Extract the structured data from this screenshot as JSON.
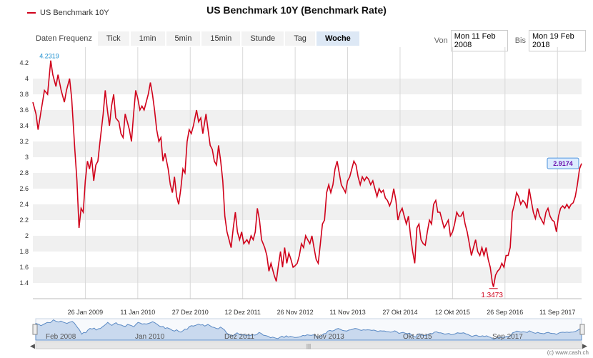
{
  "title": "US Benchmark 10Y (Benchmark Rate)",
  "legend_label": "US Benchmark 10Y",
  "range_selector": {
    "label": "Daten Frequenz",
    "buttons": [
      "Tick",
      "1min",
      "5min",
      "15min",
      "Stunde",
      "Tag",
      "Woche"
    ],
    "active": "Woche"
  },
  "date_range": {
    "from_label": "Von",
    "from_value": "Mon 11 Feb 2008",
    "to_label": "Bis",
    "to_value": "Mon 19 Feb 2018"
  },
  "navigator_labels": [
    "Feb 2008",
    "Jan 2010",
    "Dez 2011",
    "Nov 2013",
    "Okt 2015",
    "Sep 2017"
  ],
  "credit": "(c) www.cash.ch",
  "colors": {
    "line": "#d0021b",
    "band": "#f0f0f0",
    "navigator_fill": "#c9d9ee",
    "navigator_line": "#5b8ac4",
    "last_label": "#6a0dad"
  },
  "chart_data": {
    "type": "line",
    "title": "US Benchmark 10Y (Benchmark Rate)",
    "ylim": [
      1.2,
      4.4
    ],
    "yticks": [
      1.4,
      1.6,
      1.8,
      2,
      2.2,
      2.4,
      2.6,
      2.8,
      3,
      3.2,
      3.4,
      3.6,
      3.8,
      4,
      4.2
    ],
    "xticks": [
      {
        "date": "2009-01-26",
        "label": "26 Jan 2009"
      },
      {
        "date": "2010-01-11",
        "label": "11 Jan 2010"
      },
      {
        "date": "2010-12-27",
        "label": "27 Dez 2010"
      },
      {
        "date": "2011-12-12",
        "label": "12 Dez 2011"
      },
      {
        "date": "2012-11-26",
        "label": "26 Nov 2012"
      },
      {
        "date": "2013-11-11",
        "label": "11 Nov 2013"
      },
      {
        "date": "2014-10-27",
        "label": "27 Okt 2014"
      },
      {
        "date": "2015-10-12",
        "label": "12 Okt 2015"
      },
      {
        "date": "2016-09-26",
        "label": "26 Sep 2016"
      },
      {
        "date": "2017-09-11",
        "label": "11 Sep 2017"
      }
    ],
    "x_range": [
      "2008-02-11",
      "2018-02-19"
    ],
    "annotations": {
      "max": {
        "date": "2008-06-09",
        "value": 4.2319,
        "label": "4.2319"
      },
      "min": {
        "date": "2016-07-11",
        "value": 1.3473,
        "label": "1.3473"
      },
      "last": {
        "date": "2018-02-19",
        "value": 2.9174,
        "label": "2.9174"
      }
    },
    "series": [
      {
        "name": "US Benchmark 10Y",
        "points": [
          [
            "2008-02-11",
            3.7
          ],
          [
            "2008-03-03",
            3.55
          ],
          [
            "2008-03-17",
            3.35
          ],
          [
            "2008-04-07",
            3.6
          ],
          [
            "2008-04-28",
            3.85
          ],
          [
            "2008-05-19",
            3.8
          ],
          [
            "2008-06-09",
            4.23
          ],
          [
            "2008-06-23",
            4.05
          ],
          [
            "2008-07-14",
            3.9
          ],
          [
            "2008-07-28",
            4.05
          ],
          [
            "2008-08-18",
            3.85
          ],
          [
            "2008-09-08",
            3.7
          ],
          [
            "2008-09-22",
            3.85
          ],
          [
            "2008-10-13",
            4.0
          ],
          [
            "2008-10-27",
            3.75
          ],
          [
            "2008-11-17",
            3.1
          ],
          [
            "2008-12-01",
            2.7
          ],
          [
            "2008-12-15",
            2.1
          ],
          [
            "2008-12-29",
            2.35
          ],
          [
            "2009-01-12",
            2.3
          ],
          [
            "2009-01-26",
            2.7
          ],
          [
            "2009-02-09",
            2.95
          ],
          [
            "2009-02-23",
            2.85
          ],
          [
            "2009-03-09",
            3.0
          ],
          [
            "2009-03-23",
            2.7
          ],
          [
            "2009-04-06",
            2.9
          ],
          [
            "2009-04-20",
            2.95
          ],
          [
            "2009-05-04",
            3.2
          ],
          [
            "2009-05-25",
            3.55
          ],
          [
            "2009-06-08",
            3.85
          ],
          [
            "2009-06-22",
            3.6
          ],
          [
            "2009-07-06",
            3.4
          ],
          [
            "2009-07-20",
            3.65
          ],
          [
            "2009-08-03",
            3.8
          ],
          [
            "2009-08-17",
            3.5
          ],
          [
            "2009-09-07",
            3.45
          ],
          [
            "2009-09-21",
            3.3
          ],
          [
            "2009-10-05",
            3.25
          ],
          [
            "2009-10-19",
            3.55
          ],
          [
            "2009-11-02",
            3.45
          ],
          [
            "2009-11-16",
            3.35
          ],
          [
            "2009-11-30",
            3.2
          ],
          [
            "2009-12-14",
            3.55
          ],
          [
            "2009-12-28",
            3.85
          ],
          [
            "2010-01-11",
            3.75
          ],
          [
            "2010-01-25",
            3.6
          ],
          [
            "2010-02-08",
            3.65
          ],
          [
            "2010-02-22",
            3.6
          ],
          [
            "2010-03-08",
            3.7
          ],
          [
            "2010-03-22",
            3.8
          ],
          [
            "2010-04-05",
            3.95
          ],
          [
            "2010-04-19",
            3.8
          ],
          [
            "2010-05-03",
            3.6
          ],
          [
            "2010-05-17",
            3.35
          ],
          [
            "2010-06-01",
            3.2
          ],
          [
            "2010-06-14",
            3.25
          ],
          [
            "2010-06-28",
            2.95
          ],
          [
            "2010-07-12",
            3.05
          ],
          [
            "2010-08-02",
            2.85
          ],
          [
            "2010-08-16",
            2.65
          ],
          [
            "2010-08-30",
            2.55
          ],
          [
            "2010-09-13",
            2.75
          ],
          [
            "2010-09-27",
            2.5
          ],
          [
            "2010-10-11",
            2.4
          ],
          [
            "2010-10-25",
            2.6
          ],
          [
            "2010-11-08",
            2.85
          ],
          [
            "2010-11-22",
            2.8
          ],
          [
            "2010-12-06",
            3.2
          ],
          [
            "2010-12-20",
            3.35
          ],
          [
            "2011-01-03",
            3.3
          ],
          [
            "2011-01-17",
            3.4
          ],
          [
            "2011-02-07",
            3.6
          ],
          [
            "2011-02-21",
            3.45
          ],
          [
            "2011-03-07",
            3.5
          ],
          [
            "2011-03-21",
            3.3
          ],
          [
            "2011-04-11",
            3.55
          ],
          [
            "2011-04-25",
            3.35
          ],
          [
            "2011-05-09",
            3.15
          ],
          [
            "2011-05-23",
            3.1
          ],
          [
            "2011-06-06",
            2.95
          ],
          [
            "2011-06-20",
            2.9
          ],
          [
            "2011-07-04",
            3.15
          ],
          [
            "2011-07-18",
            2.95
          ],
          [
            "2011-08-01",
            2.7
          ],
          [
            "2011-08-15",
            2.25
          ],
          [
            "2011-08-29",
            2.05
          ],
          [
            "2011-09-12",
            1.95
          ],
          [
            "2011-09-26",
            1.85
          ],
          [
            "2011-10-10",
            2.1
          ],
          [
            "2011-10-24",
            2.3
          ],
          [
            "2011-11-07",
            2.05
          ],
          [
            "2011-11-21",
            1.95
          ],
          [
            "2011-12-05",
            2.05
          ],
          [
            "2011-12-19",
            1.9
          ],
          [
            "2012-01-09",
            1.95
          ],
          [
            "2012-01-23",
            1.9
          ],
          [
            "2012-02-06",
            2.0
          ],
          [
            "2012-02-20",
            1.95
          ],
          [
            "2012-03-05",
            2.05
          ],
          [
            "2012-03-19",
            2.35
          ],
          [
            "2012-04-02",
            2.2
          ],
          [
            "2012-04-16",
            1.95
          ],
          [
            "2012-05-07",
            1.85
          ],
          [
            "2012-05-21",
            1.75
          ],
          [
            "2012-06-04",
            1.55
          ],
          [
            "2012-06-18",
            1.65
          ],
          [
            "2012-07-09",
            1.5
          ],
          [
            "2012-07-23",
            1.42
          ],
          [
            "2012-08-06",
            1.62
          ],
          [
            "2012-08-20",
            1.8
          ],
          [
            "2012-09-03",
            1.6
          ],
          [
            "2012-09-17",
            1.85
          ],
          [
            "2012-10-01",
            1.65
          ],
          [
            "2012-10-15",
            1.78
          ],
          [
            "2012-10-29",
            1.7
          ],
          [
            "2012-11-12",
            1.6
          ],
          [
            "2012-11-26",
            1.62
          ],
          [
            "2012-12-10",
            1.65
          ],
          [
            "2012-12-24",
            1.75
          ],
          [
            "2013-01-07",
            1.9
          ],
          [
            "2013-01-21",
            1.85
          ],
          [
            "2013-02-04",
            2.0
          ],
          [
            "2013-02-18",
            1.95
          ],
          [
            "2013-03-04",
            1.9
          ],
          [
            "2013-03-18",
            2.0
          ],
          [
            "2013-04-01",
            1.85
          ],
          [
            "2013-04-15",
            1.7
          ],
          [
            "2013-04-29",
            1.65
          ],
          [
            "2013-05-13",
            1.9
          ],
          [
            "2013-05-27",
            2.15
          ],
          [
            "2013-06-10",
            2.2
          ],
          [
            "2013-06-24",
            2.55
          ],
          [
            "2013-07-08",
            2.65
          ],
          [
            "2013-07-22",
            2.55
          ],
          [
            "2013-08-05",
            2.65
          ],
          [
            "2013-08-19",
            2.85
          ],
          [
            "2013-09-02",
            2.95
          ],
          [
            "2013-09-16",
            2.8
          ],
          [
            "2013-09-30",
            2.65
          ],
          [
            "2013-10-14",
            2.6
          ],
          [
            "2013-10-28",
            2.55
          ],
          [
            "2013-11-11",
            2.7
          ],
          [
            "2013-11-25",
            2.75
          ],
          [
            "2013-12-09",
            2.85
          ],
          [
            "2013-12-23",
            2.95
          ],
          [
            "2014-01-06",
            2.9
          ],
          [
            "2014-01-20",
            2.75
          ],
          [
            "2014-02-03",
            2.65
          ],
          [
            "2014-02-17",
            2.75
          ],
          [
            "2014-03-03",
            2.7
          ],
          [
            "2014-03-17",
            2.75
          ],
          [
            "2014-03-31",
            2.72
          ],
          [
            "2014-04-14",
            2.65
          ],
          [
            "2014-04-28",
            2.7
          ],
          [
            "2014-05-12",
            2.6
          ],
          [
            "2014-05-26",
            2.5
          ],
          [
            "2014-06-09",
            2.6
          ],
          [
            "2014-06-23",
            2.55
          ],
          [
            "2014-07-07",
            2.58
          ],
          [
            "2014-07-21",
            2.48
          ],
          [
            "2014-08-04",
            2.45
          ],
          [
            "2014-08-18",
            2.38
          ],
          [
            "2014-09-01",
            2.45
          ],
          [
            "2014-09-15",
            2.6
          ],
          [
            "2014-09-29",
            2.45
          ],
          [
            "2014-10-13",
            2.2
          ],
          [
            "2014-10-27",
            2.3
          ],
          [
            "2014-11-10",
            2.35
          ],
          [
            "2014-11-24",
            2.25
          ],
          [
            "2014-12-08",
            2.15
          ],
          [
            "2014-12-22",
            2.25
          ],
          [
            "2015-01-05",
            2.0
          ],
          [
            "2015-01-19",
            1.8
          ],
          [
            "2015-02-02",
            1.65
          ],
          [
            "2015-02-16",
            2.1
          ],
          [
            "2015-03-02",
            2.15
          ],
          [
            "2015-03-16",
            1.95
          ],
          [
            "2015-03-30",
            1.9
          ],
          [
            "2015-04-13",
            1.88
          ],
          [
            "2015-04-27",
            2.05
          ],
          [
            "2015-05-11",
            2.2
          ],
          [
            "2015-05-25",
            2.15
          ],
          [
            "2015-06-08",
            2.4
          ],
          [
            "2015-06-22",
            2.45
          ],
          [
            "2015-07-06",
            2.3
          ],
          [
            "2015-07-20",
            2.3
          ],
          [
            "2015-08-03",
            2.2
          ],
          [
            "2015-08-17",
            2.1
          ],
          [
            "2015-08-31",
            2.15
          ],
          [
            "2015-09-14",
            2.2
          ],
          [
            "2015-09-28",
            2.0
          ],
          [
            "2015-10-12",
            2.05
          ],
          [
            "2015-10-26",
            2.15
          ],
          [
            "2015-11-09",
            2.3
          ],
          [
            "2015-11-23",
            2.25
          ],
          [
            "2015-12-07",
            2.25
          ],
          [
            "2015-12-21",
            2.3
          ],
          [
            "2016-01-04",
            2.15
          ],
          [
            "2016-01-18",
            2.05
          ],
          [
            "2016-02-01",
            1.9
          ],
          [
            "2016-02-15",
            1.75
          ],
          [
            "2016-02-29",
            1.85
          ],
          [
            "2016-03-14",
            1.95
          ],
          [
            "2016-03-28",
            1.8
          ],
          [
            "2016-04-11",
            1.75
          ],
          [
            "2016-04-25",
            1.85
          ],
          [
            "2016-05-09",
            1.75
          ],
          [
            "2016-05-23",
            1.85
          ],
          [
            "2016-06-06",
            1.7
          ],
          [
            "2016-06-20",
            1.6
          ],
          [
            "2016-07-04",
            1.4
          ],
          [
            "2016-07-11",
            1.35
          ],
          [
            "2016-07-25",
            1.5
          ],
          [
            "2016-08-08",
            1.55
          ],
          [
            "2016-08-22",
            1.58
          ],
          [
            "2016-09-05",
            1.65
          ],
          [
            "2016-09-19",
            1.6
          ],
          [
            "2016-10-03",
            1.75
          ],
          [
            "2016-10-17",
            1.75
          ],
          [
            "2016-10-31",
            1.85
          ],
          [
            "2016-11-14",
            2.3
          ],
          [
            "2016-11-28",
            2.4
          ],
          [
            "2016-12-12",
            2.55
          ],
          [
            "2016-12-26",
            2.5
          ],
          [
            "2017-01-09",
            2.4
          ],
          [
            "2017-01-23",
            2.45
          ],
          [
            "2017-02-06",
            2.42
          ],
          [
            "2017-02-20",
            2.35
          ],
          [
            "2017-03-06",
            2.6
          ],
          [
            "2017-03-20",
            2.45
          ],
          [
            "2017-04-03",
            2.3
          ],
          [
            "2017-04-17",
            2.22
          ],
          [
            "2017-05-01",
            2.35
          ],
          [
            "2017-05-15",
            2.25
          ],
          [
            "2017-05-29",
            2.2
          ],
          [
            "2017-06-12",
            2.15
          ],
          [
            "2017-06-26",
            2.3
          ],
          [
            "2017-07-10",
            2.35
          ],
          [
            "2017-07-24",
            2.25
          ],
          [
            "2017-08-07",
            2.2
          ],
          [
            "2017-08-21",
            2.18
          ],
          [
            "2017-09-04",
            2.05
          ],
          [
            "2017-09-18",
            2.25
          ],
          [
            "2017-10-02",
            2.35
          ],
          [
            "2017-10-16",
            2.38
          ],
          [
            "2017-10-30",
            2.35
          ],
          [
            "2017-11-13",
            2.4
          ],
          [
            "2017-11-27",
            2.35
          ],
          [
            "2017-12-11",
            2.4
          ],
          [
            "2017-12-25",
            2.42
          ],
          [
            "2018-01-08",
            2.5
          ],
          [
            "2018-01-22",
            2.65
          ],
          [
            "2018-02-05",
            2.85
          ],
          [
            "2018-02-19",
            2.92
          ]
        ]
      }
    ]
  }
}
